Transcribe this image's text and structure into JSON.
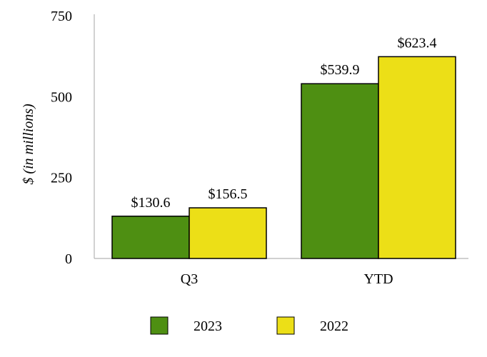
{
  "chart_data": {
    "type": "bar",
    "title": "",
    "xlabel": "",
    "ylabel": "$ (in millions)",
    "ylim": [
      0,
      750
    ],
    "yticks": [
      0,
      250,
      500,
      750
    ],
    "categories": [
      "Q3",
      "YTD"
    ],
    "series": [
      {
        "name": "2023",
        "color": "#4e8f12",
        "values": [
          130.6,
          539.9
        ],
        "labels": [
          "$130.6",
          "$539.9"
        ]
      },
      {
        "name": "2022",
        "color": "#ecdf17",
        "values": [
          156.5,
          623.4
        ],
        "labels": [
          "$156.5",
          "$623.4"
        ]
      }
    ],
    "grid": false,
    "legend_position": "bottom"
  }
}
